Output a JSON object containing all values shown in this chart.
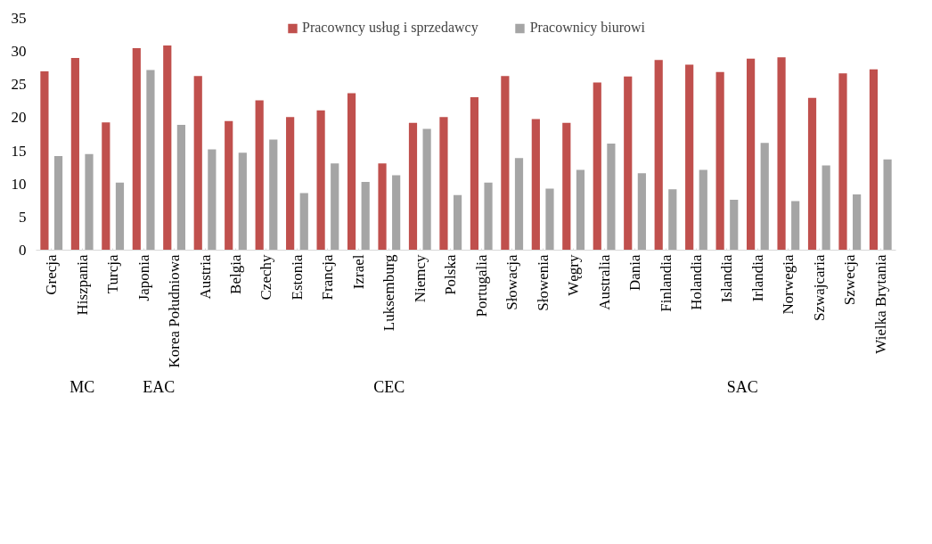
{
  "chart_data": {
    "type": "bar",
    "categories": [
      "Grecja",
      "Hiszpania",
      "Turcja",
      "Japonia",
      "Korea Południowa",
      "Austria",
      "Belgia",
      "Czechy",
      "Estonia",
      "Francja",
      "Izrael",
      "Luksemburg",
      "Niemcy",
      "Polska",
      "Portugalia",
      "Słowacja",
      "Słowenia",
      "Węgry",
      "Australia",
      "Dania",
      "Finlandia",
      "Holandia",
      "Islandia",
      "Irlandia",
      "Norwegia",
      "Szwajcaria",
      "Szwecja",
      "Wielka Brytania"
    ],
    "series": [
      {
        "name": "Pracowncy usług i sprzedawcy",
        "color": "#c0504d",
        "values": [
          27,
          29,
          19.3,
          30.5,
          30.9,
          26.3,
          19.5,
          22.6,
          20.1,
          21.1,
          23.7,
          13.1,
          19.2,
          20.1,
          23.1,
          26.3,
          19.8,
          19.2,
          25.3,
          26.2,
          28.7,
          28,
          26.9,
          28.9,
          29.1,
          23,
          26.7,
          27.3
        ]
      },
      {
        "name": "Pracownicy biurowi",
        "color": "#a5a5a5",
        "values": [
          14.2,
          14.5,
          10.2,
          27.2,
          18.9,
          15.2,
          14.7,
          16.7,
          8.6,
          13.1,
          10.3,
          11.3,
          18.3,
          8.3,
          10.2,
          13.9,
          9.3,
          12.1,
          16.1,
          11.6,
          9.2,
          12.1,
          7.6,
          16.2,
          7.4,
          12.8,
          8.4,
          13.7
        ]
      }
    ],
    "annotations": [
      "MC",
      "EAC",
      "CEC",
      "SAC"
    ],
    "ylim": [
      0,
      35
    ],
    "yticks": [
      0,
      5,
      10,
      15,
      20,
      25,
      30,
      35
    ],
    "grid": false,
    "legend": "top"
  }
}
